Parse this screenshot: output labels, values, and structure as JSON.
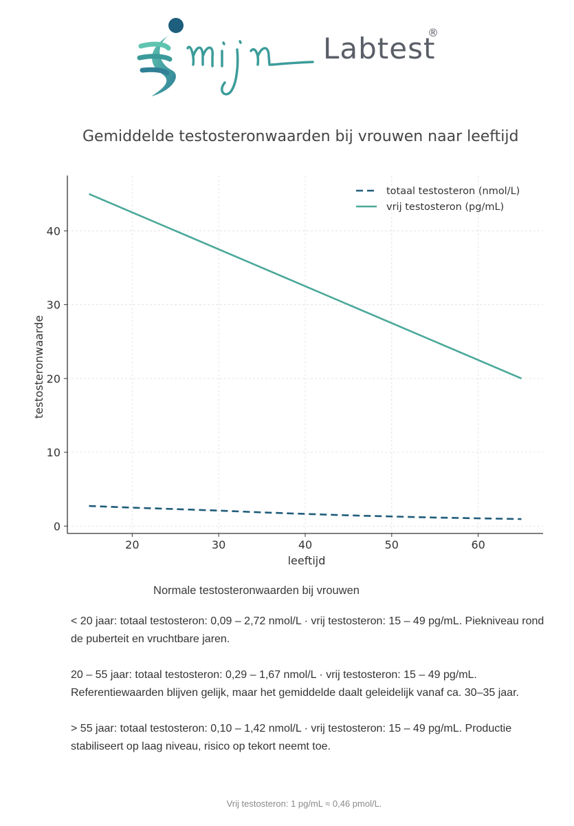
{
  "brand": {
    "logo_script": "mijn",
    "logo_text": "Labtest",
    "registered": "®"
  },
  "chart_title": "Gemiddelde testosteronwaarden bij vrouwen naar leeftijd",
  "chart_data": {
    "type": "line",
    "xlabel": "leeftijd",
    "ylabel": "testosteronwaarde",
    "xlim": [
      12.5,
      67.5
    ],
    "ylim": [
      -1,
      47.5
    ],
    "xticks": [
      20,
      30,
      40,
      50,
      60
    ],
    "yticks": [
      0,
      10,
      20,
      30,
      40
    ],
    "grid": true,
    "legend_position": "top-right",
    "series": [
      {
        "name": "totaal testosteron (nmol/L)",
        "style": "dashed",
        "color": "#1f5c7a",
        "x": [
          15,
          20,
          25,
          30,
          35,
          40,
          45,
          50,
          55,
          60,
          65
        ],
        "y": [
          2.72,
          2.5,
          2.3,
          2.1,
          1.85,
          1.65,
          1.45,
          1.3,
          1.15,
          1.05,
          0.95
        ]
      },
      {
        "name": "vrij testosteron (pg/mL)",
        "style": "solid",
        "color": "#4aa89a",
        "x": [
          15,
          65
        ],
        "y": [
          45,
          20
        ]
      }
    ]
  },
  "info": {
    "heading": "Normale testosteronwaarden bij vrouwen",
    "paragraphs": [
      "< 20 jaar: totaal testosteron: 0,09 – 2,72 nmol/L · vrij testosteron: 15 – 49 pg/mL. Piekniveau rond de puberteit en vruchtbare jaren.",
      "20 – 55 jaar: totaal testosteron: 0,29 – 1,67 nmol/L · vrij testosteron: 15 – 49 pg/mL. Referentiewaarden blijven gelijk, maar het gemiddelde daalt geleidelijk vanaf ca. 30–35 jaar.",
      "> 55 jaar: totaal testosteron: 0,10 – 1,42 nmol/L · vrij testosteron: 15 – 49 pg/mL. Productie stabiliseert op laag niveau, risico op tekort neemt toe."
    ],
    "footnote": "Vrij testosteron: 1 pg/mL ≈ 0,46 pmol/L."
  }
}
